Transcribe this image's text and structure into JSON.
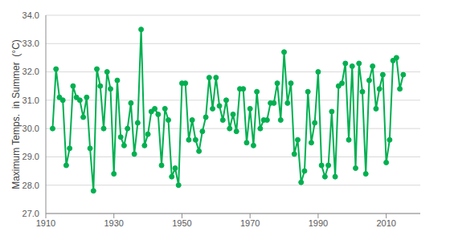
{
  "chart_data": {
    "type": "line",
    "y_label": "Maximum Temps.  in Summer  (°C)",
    "x": [
      1912,
      1913,
      1914,
      1915,
      1916,
      1917,
      1918,
      1919,
      1920,
      1921,
      1922,
      1923,
      1924,
      1925,
      1926,
      1927,
      1928,
      1929,
      1930,
      1931,
      1932,
      1933,
      1934,
      1935,
      1936,
      1937,
      1938,
      1939,
      1940,
      1941,
      1942,
      1943,
      1944,
      1945,
      1946,
      1947,
      1948,
      1949,
      1950,
      1951,
      1952,
      1953,
      1954,
      1955,
      1956,
      1957,
      1958,
      1959,
      1960,
      1961,
      1962,
      1963,
      1964,
      1965,
      1966,
      1967,
      1968,
      1969,
      1970,
      1971,
      1972,
      1973,
      1974,
      1975,
      1976,
      1977,
      1978,
      1979,
      1980,
      1981,
      1982,
      1983,
      1984,
      1985,
      1986,
      1987,
      1988,
      1989,
      1990,
      1991,
      1992,
      1993,
      1994,
      1995,
      1996,
      1997,
      1998,
      1999,
      2000,
      2001,
      2002,
      2003,
      2004,
      2005,
      2006,
      2007,
      2008,
      2009,
      2010,
      2011,
      2012,
      2013,
      2014,
      2015
    ],
    "values": [
      30.0,
      32.1,
      31.1,
      31.0,
      28.7,
      29.3,
      31.5,
      31.1,
      31.0,
      30.4,
      31.1,
      29.3,
      27.8,
      32.1,
      31.5,
      30.0,
      32.0,
      31.4,
      28.4,
      31.7,
      29.7,
      29.4,
      30.0,
      30.9,
      29.1,
      30.2,
      33.5,
      29.4,
      29.8,
      30.6,
      30.7,
      30.5,
      28.7,
      30.7,
      30.3,
      28.3,
      28.6,
      28.0,
      31.6,
      31.6,
      29.6,
      30.3,
      29.6,
      29.2,
      29.9,
      30.4,
      31.8,
      30.7,
      31.8,
      30.8,
      30.3,
      31.0,
      30.0,
      30.5,
      29.9,
      31.4,
      31.4,
      29.5,
      30.7,
      29.4,
      31.3,
      30.0,
      30.3,
      30.3,
      30.9,
      30.9,
      31.6,
      30.3,
      32.7,
      30.9,
      31.6,
      29.1,
      29.6,
      28.1,
      28.5,
      31.3,
      29.5,
      30.2,
      32.0,
      28.7,
      28.3,
      28.7,
      30.6,
      28.3,
      31.5,
      31.6,
      32.3,
      29.6,
      32.2,
      28.6,
      32.3,
      31.3,
      28.4,
      31.7,
      32.2,
      30.7,
      31.4,
      31.9,
      28.8,
      29.6,
      32.4,
      32.5,
      31.4,
      31.9
    ],
    "color": "#00b050",
    "marker": "circle",
    "xlim": [
      1910,
      2020
    ],
    "xticks": [
      1910,
      1930,
      1950,
      1970,
      1990,
      2010
    ],
    "ylim": [
      27,
      34
    ],
    "yticks": [
      {
        "value": 27,
        "label": "27.0"
      },
      {
        "value": 28,
        "label": "28.0"
      },
      {
        "value": 29,
        "label": "29.0"
      },
      {
        "value": 30,
        "label": "30.0"
      },
      {
        "value": 31,
        "label": "31.0"
      },
      {
        "value": 32,
        "label": "32.0"
      },
      {
        "value": 33,
        "label": "33.0"
      },
      {
        "value": 34,
        "label": "34.0"
      }
    ],
    "grid": true
  }
}
